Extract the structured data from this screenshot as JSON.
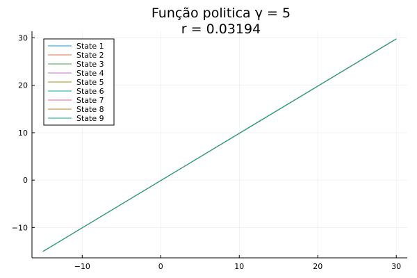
{
  "chart_data": {
    "type": "line",
    "title": "Função politica γ = 5",
    "subtitle": "r = 0.03194",
    "xlabel": "",
    "ylabel": "",
    "xlim": [
      -16.4,
      31.4
    ],
    "ylim": [
      -16.4,
      31.4
    ],
    "xticks": [
      -10,
      0,
      10,
      20,
      30
    ],
    "yticks": [
      -10,
      0,
      10,
      20,
      30
    ],
    "xtick_labels": [
      "−10",
      "0",
      "10",
      "20",
      "30"
    ],
    "ytick_labels": [
      "−10",
      "0",
      "10",
      "20",
      "30"
    ],
    "grid": true,
    "legend_position": "top-left",
    "series": [
      {
        "name": "State 1",
        "color": "#009AFA",
        "x": [
          -15,
          30
        ],
        "y": [
          -15.05,
          29.8
        ]
      },
      {
        "name": "State 2",
        "color": "#E36F47",
        "x": [
          -15,
          30
        ],
        "y": [
          -15.05,
          29.75
        ]
      },
      {
        "name": "State 3",
        "color": "#3EA44E",
        "x": [
          -15,
          30
        ],
        "y": [
          -15.05,
          29.8
        ]
      },
      {
        "name": "State 4",
        "color": "#C371D2",
        "x": [
          -15,
          30
        ],
        "y": [
          -15.05,
          29.8
        ]
      },
      {
        "name": "State 5",
        "color": "#AC8E18",
        "x": [
          -15,
          30
        ],
        "y": [
          -15.05,
          29.8
        ]
      },
      {
        "name": "State 6",
        "color": "#00A9AD",
        "x": [
          -15,
          30
        ],
        "y": [
          -15.05,
          29.8
        ]
      },
      {
        "name": "State 7",
        "color": "#ED5E93",
        "x": [
          -15,
          30
        ],
        "y": [
          -15.05,
          29.8
        ]
      },
      {
        "name": "State 8",
        "color": "#C68225",
        "x": [
          -15,
          30
        ],
        "y": [
          -15.05,
          29.8
        ]
      },
      {
        "name": "State 9",
        "color": "#00A98D",
        "x": [
          -15,
          30
        ],
        "y": [
          -15.05,
          29.8
        ]
      }
    ]
  }
}
